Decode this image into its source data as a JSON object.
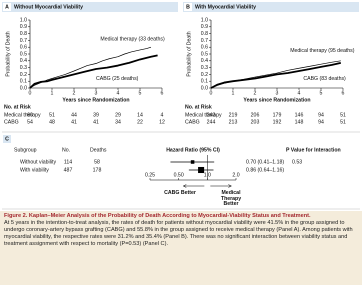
{
  "chart_data": [
    {
      "type": "km",
      "panel": "A",
      "title": "Without Myocardial Viability",
      "xlabel": "Years since Randomization",
      "ylabel": "Probability of Death",
      "xlim": [
        0,
        6
      ],
      "ylim": [
        0,
        1
      ],
      "xticks": [
        0,
        1,
        2,
        3,
        4,
        5,
        6
      ],
      "yticks": [
        {
          "value": 0,
          "label": "0.0"
        },
        {
          "value": 0.1,
          "label": "0.1"
        },
        {
          "value": 0.2,
          "label": "0.2"
        },
        {
          "value": 0.3,
          "label": "0.3"
        },
        {
          "value": 0.4,
          "label": "0.4"
        },
        {
          "value": 0.5,
          "label": "0.5"
        },
        {
          "value": 0.6,
          "label": "0.6"
        },
        {
          "value": 0.7,
          "label": "0.7"
        },
        {
          "value": 0.8,
          "label": "0.8"
        },
        {
          "value": 0.9,
          "label": "0.9"
        },
        {
          "value": 1,
          "label": "1.0"
        }
      ],
      "series": [
        {
          "name": "Medical therapy (33 deaths)",
          "color": "#000000",
          "width": 0.7,
          "x": [
            0,
            0.2,
            0.5,
            0.8,
            1,
            1.3,
            1.6,
            2,
            2.3,
            2.6,
            3,
            3.3,
            3.6,
            4,
            4.3,
            4.6,
            5,
            5.3,
            5.5
          ],
          "values": [
            0,
            0.04,
            0.08,
            0.12,
            0.14,
            0.17,
            0.2,
            0.25,
            0.29,
            0.33,
            0.36,
            0.4,
            0.43,
            0.46,
            0.5,
            0.53,
            0.56,
            0.58,
            0.6
          ]
        },
        {
          "name": "CABG (25 deaths)",
          "color": "#000000",
          "width": 1.8,
          "x": [
            0,
            0.2,
            0.5,
            0.8,
            1,
            1.5,
            2,
            2.5,
            3,
            3.5,
            4,
            4.5,
            5,
            5.5,
            5.8
          ],
          "values": [
            0,
            0.06,
            0.09,
            0.1,
            0.12,
            0.16,
            0.2,
            0.24,
            0.28,
            0.3,
            0.33,
            0.37,
            0.42,
            0.46,
            0.48
          ]
        }
      ],
      "at_risk": {
        "title": "No. at Risk",
        "rows": [
          {
            "name": "Medical therapy",
            "values": [
              60,
              51,
              44,
              39,
              29,
              14,
              4
            ]
          },
          {
            "name": "CABG",
            "values": [
              54,
              48,
              41,
              41,
              34,
              22,
              12
            ]
          }
        ]
      }
    },
    {
      "type": "km",
      "panel": "B",
      "title": "With Myocardial Viability",
      "xlabel": "Years since Randomization",
      "ylabel": "Probability of Death",
      "xlim": [
        0,
        6
      ],
      "ylim": [
        0,
        1
      ],
      "xticks": [
        0,
        1,
        2,
        3,
        4,
        5,
        6
      ],
      "yticks": [
        {
          "value": 0,
          "label": "0.0"
        },
        {
          "value": 0.1,
          "label": "0.1"
        },
        {
          "value": 0.2,
          "label": "0.2"
        },
        {
          "value": 0.3,
          "label": "0.3"
        },
        {
          "value": 0.4,
          "label": "0.4"
        },
        {
          "value": 0.5,
          "label": "0.5"
        },
        {
          "value": 0.6,
          "label": "0.6"
        },
        {
          "value": 0.7,
          "label": "0.7"
        },
        {
          "value": 0.8,
          "label": "0.8"
        },
        {
          "value": 0.9,
          "label": "0.9"
        },
        {
          "value": 1,
          "label": "1.0"
        }
      ],
      "series": [
        {
          "name": "Medical therapy (95 deaths)",
          "color": "#000000",
          "width": 0.7,
          "x": [
            0,
            0.3,
            0.6,
            1,
            1.5,
            2,
            2.5,
            3,
            3.5,
            4,
            4.5,
            5,
            5.5,
            5.9
          ],
          "values": [
            0,
            0.04,
            0.07,
            0.1,
            0.13,
            0.16,
            0.19,
            0.22,
            0.26,
            0.29,
            0.32,
            0.35,
            0.38,
            0.4
          ]
        },
        {
          "name": "CABG (83 deaths)",
          "color": "#000000",
          "width": 1.8,
          "x": [
            0,
            0.3,
            0.6,
            1,
            1.5,
            2,
            2.5,
            3,
            3.5,
            4,
            4.5,
            5,
            5.5,
            5.9
          ],
          "values": [
            0,
            0.05,
            0.08,
            0.1,
            0.12,
            0.14,
            0.17,
            0.2,
            0.22,
            0.25,
            0.28,
            0.31,
            0.34,
            0.37
          ]
        }
      ],
      "at_risk": {
        "title": "No. at Risk",
        "rows": [
          {
            "name": "Medical therapy",
            "values": [
              243,
              219,
              206,
              179,
              146,
              94,
              51
            ]
          },
          {
            "name": "CABG",
            "values": [
              244,
              213,
              203,
              192,
              148,
              94,
              51
            ]
          }
        ]
      }
    },
    {
      "type": "forest",
      "panel": "C",
      "columns": [
        "Subgroup",
        "No.",
        "Deaths",
        "Hazard Ratio (95% CI)",
        "P Value for Interaction"
      ],
      "categories": [
        "Without viability",
        "With viability"
      ],
      "n": [
        114,
        487
      ],
      "deaths": [
        58,
        178
      ],
      "values": [
        0.7,
        0.86
      ],
      "lower": [
        0.41,
        0.64
      ],
      "upper": [
        1.18,
        1.16
      ],
      "value_labels": [
        "0.70 (0.41–1.18)",
        "0.86 (0.64–1.16)"
      ],
      "p_value": 0.53,
      "xscale": "log",
      "xlim": [
        0.25,
        2
      ],
      "xticks": [
        0.25,
        {
          "value": 0.5,
          "label": "0.50"
        },
        {
          "value": 1,
          "label": "1.0"
        },
        {
          "value": 2,
          "label": "2.0"
        }
      ],
      "better_labels": [
        "CABG Better",
        "Medical Therapy Better"
      ]
    }
  ],
  "caption": {
    "label": "Figure 2.",
    "title": "Kaplan–Meier Analysis of the Probability of Death According to Myocardial-Viability Status and Treatment.",
    "text": "At 5 years in the intention-to-treat analysis, the rates of death for patients without myocardial viability were 41.5% in the group assigned to undergo coronary-artery bypass grafting (CABG) and 55.8% in the group assigned to receive medical therapy (Panel A). Among patients with myocardial viability, the respective rates were 31.2% and 35.4% (Panel B). There was no significant interaction between viability status and treatment assignment with respect to mortality (P=0.53) (Panel C)."
  }
}
